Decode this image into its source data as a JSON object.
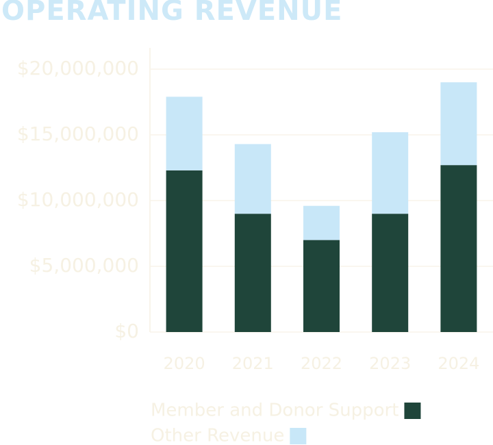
{
  "chart_data": {
    "type": "stacked-bar",
    "title": "OPERATING REVENUE",
    "categories": [
      "2020",
      "2021",
      "2022",
      "2023",
      "2024"
    ],
    "series": [
      {
        "name": "Member and Donor Support",
        "color": "#1f453a",
        "values": [
          12300000,
          9000000,
          7000000,
          9000000,
          12700000
        ]
      },
      {
        "name": "Other Revenue",
        "color": "#c8e7f8",
        "values": [
          5600000,
          5300000,
          2600000,
          6200000,
          6300000
        ]
      }
    ],
    "ylim": [
      0,
      20000000
    ],
    "yticks": [
      {
        "value": 0,
        "label": "$0"
      },
      {
        "value": 5000000,
        "label": "$5,000,000"
      },
      {
        "value": 10000000,
        "label": "$10,000,000"
      },
      {
        "value": 15000000,
        "label": "$15,000,000"
      },
      {
        "value": 20000000,
        "label": "$20,000,000"
      }
    ],
    "grid": true
  }
}
